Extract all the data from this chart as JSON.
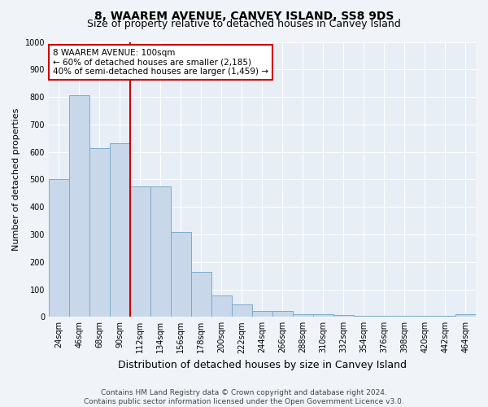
{
  "title": "8, WAAREM AVENUE, CANVEY ISLAND, SS8 9DS",
  "subtitle": "Size of property relative to detached houses in Canvey Island",
  "xlabel": "Distribution of detached houses by size in Canvey Island",
  "ylabel": "Number of detached properties",
  "categories": [
    "24sqm",
    "46sqm",
    "68sqm",
    "90sqm",
    "112sqm",
    "134sqm",
    "156sqm",
    "178sqm",
    "200sqm",
    "222sqm",
    "244sqm",
    "266sqm",
    "288sqm",
    "310sqm",
    "332sqm",
    "354sqm",
    "376sqm",
    "398sqm",
    "420sqm",
    "442sqm",
    "464sqm"
  ],
  "values": [
    500,
    805,
    615,
    630,
    475,
    475,
    310,
    163,
    78,
    45,
    23,
    22,
    10,
    10,
    6,
    3,
    3,
    3,
    3,
    3,
    10
  ],
  "bar_color": "#c8d8ea",
  "bar_edge_color": "#7aaac8",
  "vline_x_index": 3,
  "vline_color": "#cc0000",
  "annotation_text": "8 WAAREM AVENUE: 100sqm\n← 60% of detached houses are smaller (2,185)\n40% of semi-detached houses are larger (1,459) →",
  "annotation_box_color": "white",
  "annotation_box_edge_color": "#cc0000",
  "ylim": [
    0,
    1000
  ],
  "yticks": [
    0,
    100,
    200,
    300,
    400,
    500,
    600,
    700,
    800,
    900,
    1000
  ],
  "footer": "Contains HM Land Registry data © Crown copyright and database right 2024.\nContains public sector information licensed under the Open Government Licence v3.0.",
  "fig_background_color": "#f0f4f8",
  "plot_background_color": "#e8eef5",
  "grid_color": "#ffffff",
  "title_fontsize": 10,
  "subtitle_fontsize": 9,
  "xlabel_fontsize": 9,
  "ylabel_fontsize": 8,
  "tick_fontsize": 7,
  "footer_fontsize": 6.5,
  "annotation_fontsize": 7.5
}
